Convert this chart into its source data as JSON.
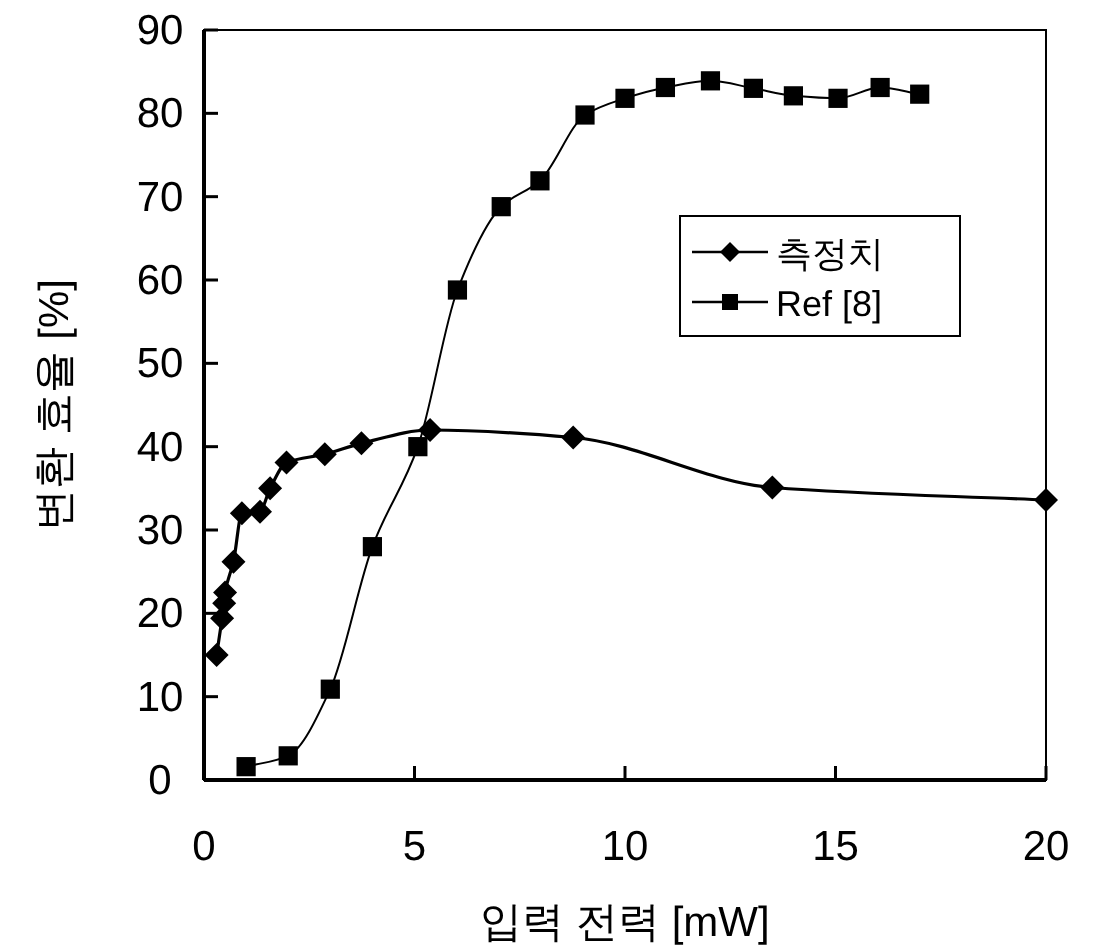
{
  "chart_data": {
    "type": "line",
    "xlabel": "입력 전력 [mW]",
    "ylabel": "변환 효율 [%]",
    "xlim": [
      0,
      20
    ],
    "ylim": [
      0,
      90
    ],
    "xticks": [
      0,
      5,
      10,
      15,
      20
    ],
    "yticks": [
      0,
      10,
      20,
      30,
      40,
      50,
      60,
      70,
      80,
      90
    ],
    "grid": false,
    "legend": "right",
    "line_style": "solid",
    "series": [
      {
        "name": "측정치",
        "color": "#000000",
        "marker": "diamond",
        "x": [
          0.3,
          0.43,
          0.48,
          0.5,
          0.7,
          0.9,
          1.33,
          1.57,
          1.96,
          2.87,
          3.74,
          5.37,
          8.77,
          13.5,
          20
        ],
        "values": [
          15,
          19.4,
          21.2,
          22.5,
          26.2,
          32,
          32.2,
          35,
          38.1,
          39.1,
          40.4,
          42,
          41.1,
          35.1,
          33.6
        ]
      },
      {
        "name": "Ref [8]",
        "color": "#000000",
        "marker": "square",
        "x": [
          1,
          2,
          3,
          4,
          5.08,
          6.02,
          7.06,
          7.98,
          9.05,
          10,
          10.96,
          12.03,
          13.05,
          14,
          15.06,
          16.06,
          17
        ],
        "values": [
          1.6,
          2.9,
          10.9,
          28,
          40,
          58.8,
          68.8,
          71.9,
          79.8,
          81.8,
          83.1,
          83.9,
          83,
          82.1,
          81.8,
          83.1,
          82.3
        ]
      }
    ]
  }
}
